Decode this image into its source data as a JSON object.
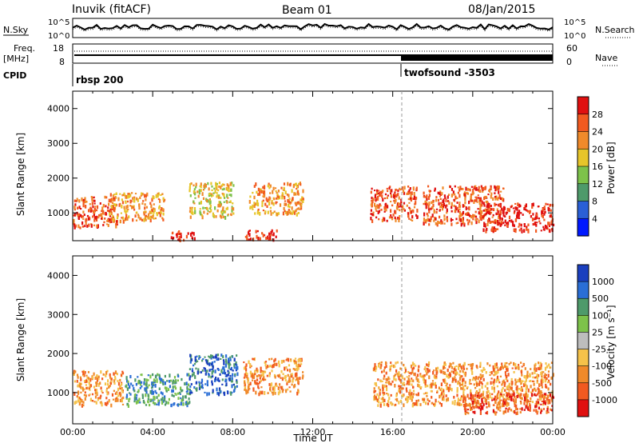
{
  "header": {
    "station": "Inuvik (fitACF)",
    "beam": "Beam 01",
    "date": "08/Jan/2015"
  },
  "sky_panel": {
    "left_label": "N.Sky",
    "right_label": "N.Search",
    "left_ticks": [
      "10^5",
      "10^0"
    ],
    "right_ticks": [
      "10^5",
      "10^0"
    ]
  },
  "freq_panel": {
    "left_label_1": "Freq.",
    "left_label_2": "[MHz]",
    "left_ticks": [
      "18",
      "8"
    ],
    "right_label": "Nave",
    "right_ticks": [
      "60",
      "0"
    ]
  },
  "cpid_panel": {
    "label": "CPID",
    "segments": [
      {
        "name": "rbsp 200",
        "start_hour": 0
      },
      {
        "name": "twofsound -3503",
        "start_hour": 16.5
      }
    ]
  },
  "chart_data": [
    {
      "type": "heatmap",
      "name": "power",
      "ylabel": "Slant Range [km]",
      "xlabel": "",
      "xlim": [
        0,
        24
      ],
      "ylim": [
        200,
        4500
      ],
      "yticks": [
        1000,
        2000,
        3000,
        4000
      ],
      "colorbar": {
        "label": "Power [dB]",
        "ticks": [
          "4",
          "8",
          "12",
          "16",
          "20",
          "24",
          "28"
        ],
        "colors": [
          "#0018ff",
          "#2a5fd6",
          "#4e9a6a",
          "#7dc24a",
          "#e7c52a",
          "#f08a2a",
          "#f25a20",
          "#e01010"
        ]
      },
      "regions": [
        {
          "t0": 0.0,
          "t1": 2.2,
          "r0": 600,
          "r1": 1500,
          "level": 6
        },
        {
          "t0": 1.8,
          "t1": 4.6,
          "r0": 800,
          "r1": 1600,
          "level": 5
        },
        {
          "t0": 4.8,
          "t1": 6.2,
          "r0": 250,
          "r1": 500,
          "level": 7
        },
        {
          "t0": 5.8,
          "t1": 8.0,
          "r0": 900,
          "r1": 1900,
          "level": 4
        },
        {
          "t0": 8.6,
          "t1": 10.2,
          "r0": 250,
          "r1": 550,
          "level": 7
        },
        {
          "t0": 8.8,
          "t1": 11.5,
          "r0": 1000,
          "r1": 1900,
          "level": 5
        },
        {
          "t0": 14.8,
          "t1": 17.2,
          "r0": 800,
          "r1": 1800,
          "level": 6
        },
        {
          "t0": 17.5,
          "t1": 21.5,
          "r0": 700,
          "r1": 1800,
          "level": 6
        },
        {
          "t0": 20.5,
          "t1": 24.0,
          "r0": 500,
          "r1": 1300,
          "level": 7
        }
      ]
    },
    {
      "type": "heatmap",
      "name": "velocity",
      "ylabel": "Slant Range [km]",
      "xlabel": "Time UT",
      "xlim": [
        0,
        24
      ],
      "ylim": [
        200,
        4500
      ],
      "yticks": [
        1000,
        2000,
        3000,
        4000
      ],
      "xticks": [
        "00:00",
        "04:00",
        "08:00",
        "12:00",
        "16:00",
        "20:00",
        "00:00"
      ],
      "colorbar": {
        "label": "Velocity [m s⁻¹]",
        "ticks": [
          "1000",
          "500",
          "100",
          "25",
          "-25",
          "-100",
          "-500",
          "-1000"
        ],
        "colors": [
          "#1a3fbf",
          "#2a6ed6",
          "#4e9a6a",
          "#7dc24a",
          "#bdbdbd",
          "#f5c24a",
          "#f08a2a",
          "#f25a20",
          "#e01010"
        ]
      },
      "regions": [
        {
          "t0": 0.0,
          "t1": 2.5,
          "r0": 700,
          "r1": 1600,
          "level": 6
        },
        {
          "t0": 2.6,
          "t1": 5.8,
          "r0": 700,
          "r1": 1500,
          "level": 2
        },
        {
          "t0": 5.8,
          "t1": 8.2,
          "r0": 1000,
          "r1": 2000,
          "level": 1
        },
        {
          "t0": 8.5,
          "t1": 11.5,
          "r0": 1000,
          "r1": 1900,
          "level": 6
        },
        {
          "t0": 15.0,
          "t1": 24.0,
          "r0": 700,
          "r1": 1800,
          "level": 6
        },
        {
          "t0": 19.5,
          "t1": 24.0,
          "r0": 500,
          "r1": 1000,
          "level": 7
        }
      ]
    }
  ]
}
